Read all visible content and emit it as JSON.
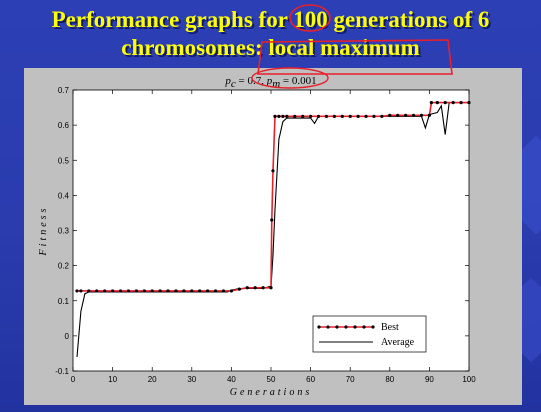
{
  "slide": {
    "title_line1": "Performance graphs for 100 generations of 6",
    "title_line2": "chromosomes: local maximum",
    "title_color": "#ffff00",
    "background_color": "#2a3cae",
    "annotation_color": "#e8202a"
  },
  "chart_data": {
    "type": "line",
    "title": "pc = 0.7, pm = 0.001",
    "xlabel": "Generations",
    "ylabel": "Fitness",
    "xlim": [
      0,
      100
    ],
    "ylim": [
      -0.1,
      0.7
    ],
    "xticks": [
      "0",
      "10",
      "20",
      "30",
      "40",
      "50",
      "60",
      "70",
      "80",
      "90",
      "100"
    ],
    "yticks": [
      "-0.1",
      "0",
      "0.1",
      "0.2",
      "0.3",
      "0.4",
      "0.5",
      "0.6",
      "0.7"
    ],
    "grid": false,
    "legend_position": "bottom-right",
    "series": [
      {
        "name": "Best",
        "color": "#e8202a",
        "marker": "dot",
        "x": [
          1,
          2,
          4,
          6,
          8,
          10,
          12,
          14,
          16,
          18,
          20,
          22,
          24,
          26,
          28,
          30,
          32,
          34,
          36,
          38,
          40,
          42,
          44,
          46,
          48,
          50,
          50.2,
          50.5,
          51,
          52,
          53,
          54,
          56,
          58,
          60,
          62,
          64,
          66,
          68,
          70,
          72,
          74,
          76,
          78,
          80,
          82,
          84,
          86,
          88,
          90,
          90.5,
          92,
          94,
          96,
          98,
          100
        ],
        "y": [
          0.128,
          0.128,
          0.128,
          0.128,
          0.128,
          0.128,
          0.128,
          0.128,
          0.128,
          0.128,
          0.128,
          0.128,
          0.128,
          0.128,
          0.128,
          0.128,
          0.128,
          0.128,
          0.128,
          0.128,
          0.128,
          0.133,
          0.137,
          0.137,
          0.137,
          0.137,
          0.33,
          0.47,
          0.625,
          0.625,
          0.625,
          0.625,
          0.625,
          0.625,
          0.625,
          0.625,
          0.625,
          0.625,
          0.625,
          0.625,
          0.625,
          0.625,
          0.625,
          0.625,
          0.628,
          0.628,
          0.628,
          0.628,
          0.628,
          0.628,
          0.664,
          0.664,
          0.664,
          0.664,
          0.664,
          0.664
        ]
      },
      {
        "name": "Average",
        "color": "#000000",
        "x": [
          1,
          2,
          3,
          4,
          6,
          10,
          20,
          30,
          39,
          40,
          42,
          45,
          48,
          49.5,
          50,
          50.5,
          51,
          52,
          53,
          54,
          58,
          60,
          61,
          62,
          64,
          70,
          80,
          86,
          87,
          88,
          89,
          90,
          91,
          92,
          93,
          94,
          95,
          96,
          97,
          100
        ],
        "y": [
          -0.06,
          0.07,
          0.12,
          0.125,
          0.125,
          0.125,
          0.125,
          0.125,
          0.125,
          0.13,
          0.135,
          0.135,
          0.135,
          0.14,
          0.14,
          0.23,
          0.36,
          0.56,
          0.61,
          0.62,
          0.62,
          0.62,
          0.605,
          0.625,
          0.625,
          0.625,
          0.625,
          0.625,
          0.625,
          0.625,
          0.592,
          0.63,
          0.633,
          0.636,
          0.655,
          0.573,
          0.664,
          0.664,
          0.664,
          0.664
        ]
      }
    ]
  }
}
